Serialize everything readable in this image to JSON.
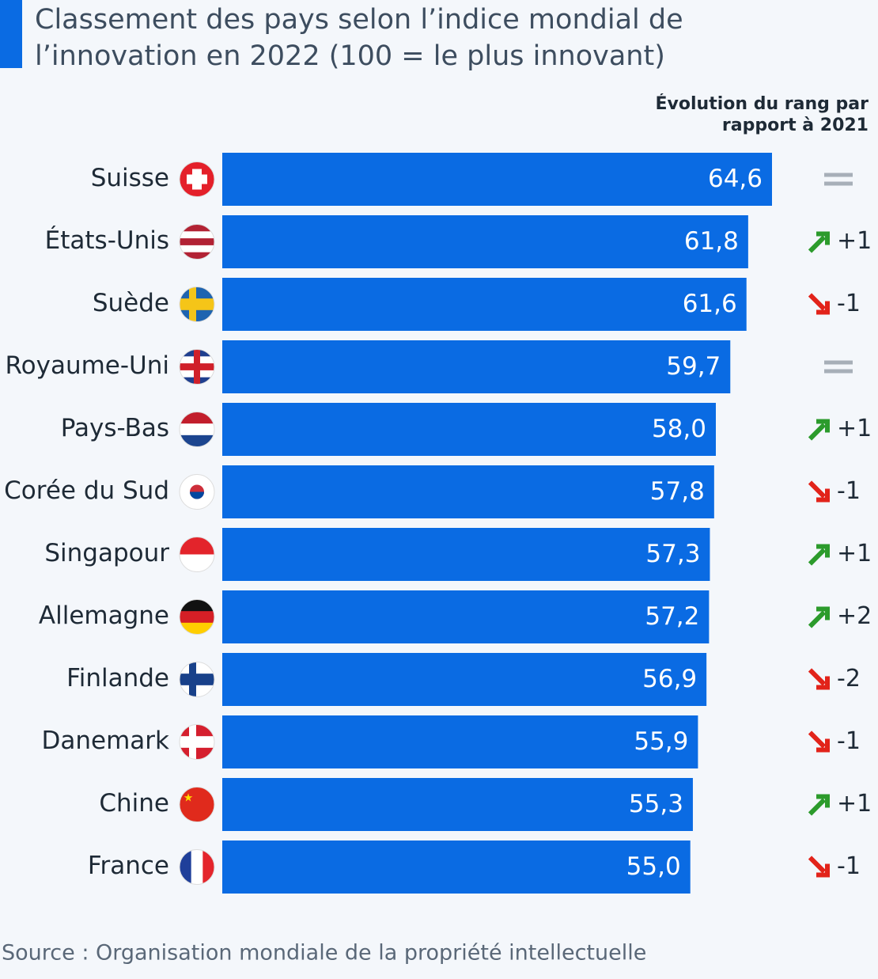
{
  "chart_data": {
    "type": "bar",
    "orientation": "horizontal",
    "title": "Classement des pays selon l’indice mondial de l’innovation en 2022 (100 = le plus innovant)",
    "categories": [
      "Suisse",
      "États-Unis",
      "Suède",
      "Royaume-Uni",
      "Pays-Bas",
      "Corée du Sud",
      "Singapour",
      "Allemagne",
      "Finlande",
      "Danemark",
      "Chine",
      "France"
    ],
    "values": [
      64.6,
      61.8,
      61.6,
      59.7,
      58.0,
      57.8,
      57.3,
      57.2,
      56.9,
      55.9,
      55.3,
      55.0
    ],
    "value_labels": [
      "64,6",
      "61,8",
      "61,6",
      "59,7",
      "58,0",
      "57,8",
      "57,3",
      "57,2",
      "56,9",
      "55,9",
      "55,3",
      "55,0"
    ],
    "color": "#0a6be3",
    "rank_change_title": "Évolution du rang par rapport à 2021",
    "rank_changes": [
      0,
      1,
      -1,
      0,
      1,
      -1,
      1,
      2,
      -2,
      -1,
      1,
      -1
    ],
    "rank_change_labels": [
      null,
      "+1",
      "-1",
      null,
      "+1",
      "-1",
      "+1",
      "+2",
      "-2",
      "-1",
      "+1",
      "-1"
    ],
    "source": "Source : Organisation mondiale de la propriété intellectuelle"
  }
}
